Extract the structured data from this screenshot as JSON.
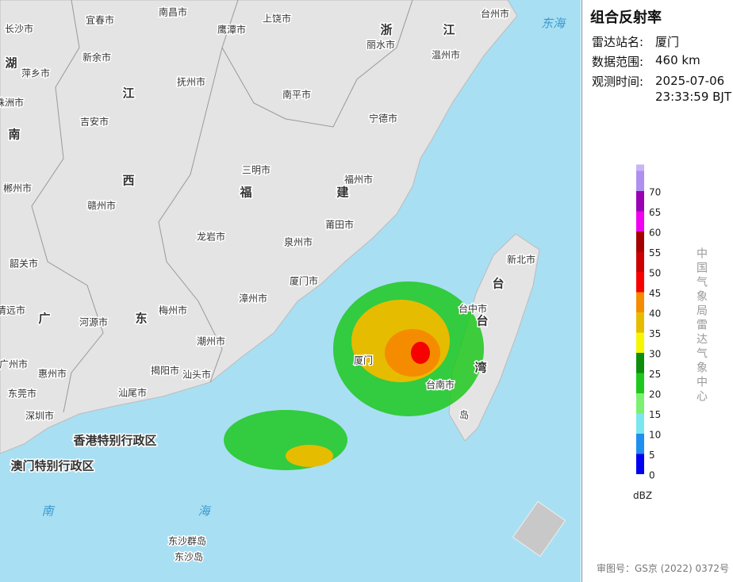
{
  "panel": {
    "title": "组合反射率",
    "station_label": "雷达站名:",
    "station": "厦门",
    "range_label": "数据范围:",
    "range": "460 km",
    "time_label": "观测时间:",
    "time": "2025-07-06 23:33:59 BJT",
    "agency": "中国气象局雷达气象中心",
    "approval": "审图号：GS京 (2022) 0372号"
  },
  "legend": {
    "unit": "dBZ",
    "levels": [
      {
        "value": 0,
        "color": "#0000f0"
      },
      {
        "value": 5,
        "color": "#1e8ef0"
      },
      {
        "value": 10,
        "color": "#7ae6ee"
      },
      {
        "value": 15,
        "color": "#7cf070"
      },
      {
        "value": 20,
        "color": "#1ec81e"
      },
      {
        "value": 25,
        "color": "#0c8e0c"
      },
      {
        "value": 30,
        "color": "#f6f600"
      },
      {
        "value": 35,
        "color": "#e6bc00"
      },
      {
        "value": 40,
        "color": "#f58c00"
      },
      {
        "value": 45,
        "color": "#f60000"
      },
      {
        "value": 50,
        "color": "#cc0000"
      },
      {
        "value": 55,
        "color": "#a40000"
      },
      {
        "value": 60,
        "color": "#f000f0"
      },
      {
        "value": 65,
        "color": "#9a00b4"
      },
      {
        "value": 70,
        "color": "#ad90f0"
      }
    ]
  },
  "map_labels": [
    "长沙市",
    "宜春市",
    "南昌市",
    "鹰潭市",
    "上饶市",
    "浙",
    "丽水市",
    "江",
    "温州市",
    "台州市",
    "东海",
    "湖",
    "萍乡市",
    "新余市",
    "抚州市",
    "江",
    "株洲市",
    "南平市",
    "吉安市",
    "宁德市",
    "南",
    "三明市",
    "西",
    "福",
    "建",
    "福州市",
    "郴州市",
    "赣州市",
    "莆田市",
    "龙岩市",
    "泉州市",
    "韶关市",
    "新北市",
    "台",
    "厦门市",
    "漳州市",
    "台中市",
    "台",
    "清远市",
    "广",
    "东",
    "河源市",
    "梅州市",
    "潮州市",
    "湾",
    "广州市",
    "惠州市",
    "揭阳市",
    "汕头市",
    "台南市",
    "东莞市",
    "汕尾市",
    "岛",
    "深圳市",
    "香港特别行政区",
    "澳门特别行政区",
    "南",
    "海",
    "东沙群岛",
    "东沙岛",
    "厦门"
  ]
}
